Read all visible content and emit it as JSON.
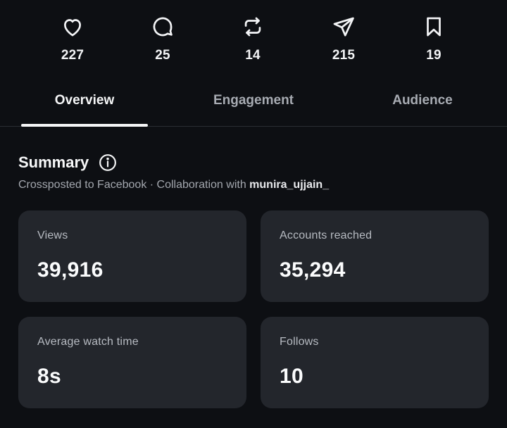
{
  "stats": [
    {
      "name": "likes",
      "icon": "heart-icon",
      "count": "227"
    },
    {
      "name": "comments",
      "icon": "comment-icon",
      "count": "25"
    },
    {
      "name": "reposts",
      "icon": "repost-icon",
      "count": "14"
    },
    {
      "name": "shares",
      "icon": "send-icon",
      "count": "215"
    },
    {
      "name": "saves",
      "icon": "bookmark-icon",
      "count": "19"
    }
  ],
  "tabs": [
    {
      "label": "Overview",
      "active": true
    },
    {
      "label": "Engagement",
      "active": false
    },
    {
      "label": "Audience",
      "active": false
    }
  ],
  "summary": {
    "title": "Summary",
    "info_icon": "info-icon",
    "subtitle_prefix": "Crossposted to Facebook · Collaboration with ",
    "collaborator": "munira_ujjain_"
  },
  "cards": [
    {
      "label": "Views",
      "value": "39,916"
    },
    {
      "label": "Accounts reached",
      "value": "35,294"
    },
    {
      "label": "Average watch time",
      "value": "8s"
    },
    {
      "label": "Follows",
      "value": "10"
    }
  ],
  "colors": {
    "background": "#0d0f13",
    "card": "#23262c",
    "text_primary": "#f5f6f7",
    "text_secondary": "#a7abb2"
  }
}
